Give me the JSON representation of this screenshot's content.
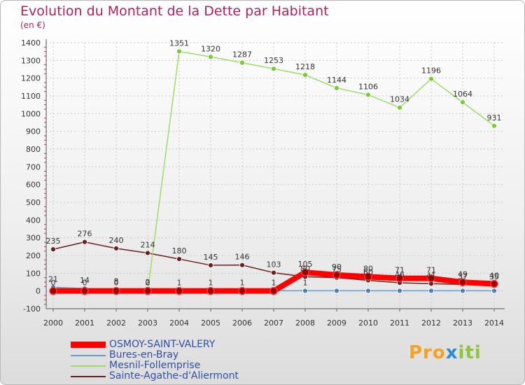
{
  "header": {
    "title": "Evolution du Montant de la Dette par Habitant",
    "unit": "(en €)"
  },
  "logo": {
    "part1": "Pro",
    "part2": "x",
    "part3": "iti"
  },
  "chart_data": {
    "type": "line",
    "title": "Evolution du Montant de la Dette par Habitant",
    "ylabel": "(en €)",
    "xlabel": "",
    "ylim": [
      -100,
      1400
    ],
    "yticks": [
      -100,
      0,
      100,
      200,
      300,
      400,
      500,
      600,
      700,
      800,
      900,
      1000,
      1100,
      1200,
      1300,
      1400
    ],
    "x": [
      "2000",
      "2001",
      "2002",
      "2003",
      "2004",
      "2005",
      "2006",
      "2007",
      "2008",
      "2009",
      "2010",
      "2011",
      "2012",
      "2013",
      "2014"
    ],
    "legend_position": "bottom-left",
    "series": [
      {
        "name": "OSMOY-SAINT-VALERY",
        "color": "#ff0000",
        "values": [
          0,
          0,
          0,
          0,
          0,
          0,
          0,
          0,
          105,
          90,
          80,
          71,
          71,
          49,
          40
        ],
        "labels": [
          "0",
          "0",
          "0",
          "0",
          "",
          "",
          "",
          "",
          "105",
          "90",
          "80",
          "71",
          "71",
          "49",
          "40"
        ],
        "emphasis": true
      },
      {
        "name": "Bures-en-Bray",
        "color": "#6699cc",
        "values": [
          21,
          14,
          8,
          2,
          1,
          1,
          1,
          1,
          1,
          1,
          1,
          1,
          1,
          1,
          1
        ],
        "labels": [
          "21",
          "14",
          "8",
          "2",
          "1",
          "1",
          "1",
          "1",
          "1",
          "",
          "",
          "",
          "",
          "",
          ""
        ]
      },
      {
        "name": "Mesnil-Follemprise",
        "color": "#99dd66",
        "values": [
          0,
          0,
          0,
          0,
          1351,
          1320,
          1287,
          1253,
          1218,
          1144,
          1106,
          1034,
          1196,
          1064,
          931
        ],
        "labels": [
          "",
          "",
          "",
          "",
          "1351",
          "1320",
          "1287",
          "1253",
          "1218",
          "1144",
          "1106",
          "1034",
          "1196",
          "1064",
          "931"
        ]
      },
      {
        "name": "Sainte-Agathe-d'Aliermont",
        "color": "#6a1e1e",
        "values": [
          235,
          276,
          240,
          214,
          180,
          145,
          146,
          103,
          80,
          75,
          60,
          46,
          41,
          37,
          35
        ],
        "labels": [
          "235",
          "276",
          "240",
          "214",
          "180",
          "145",
          "146",
          "103",
          "80",
          "75",
          "60",
          "46",
          "41",
          "37",
          "35"
        ]
      }
    ]
  }
}
